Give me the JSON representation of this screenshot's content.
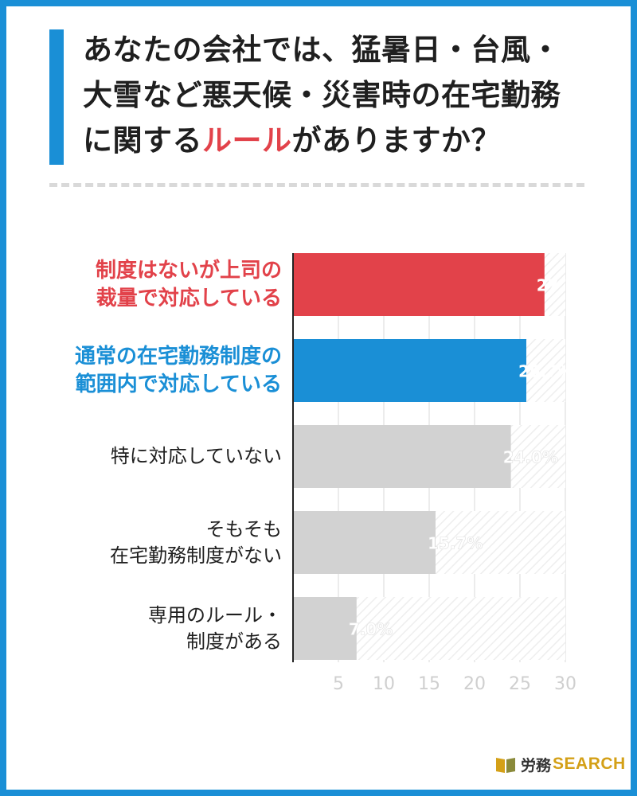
{
  "title": {
    "line1": "あなたの会社では、猛暑日・台風・",
    "line2": "大雪など悪天候・災害時の在宅勤務",
    "line3_prefix": "に関する",
    "line3_highlight": "ルール",
    "line3_suffix": "がありますか？"
  },
  "colors": {
    "frame": "#1a8fd6",
    "accent_red": "#e2424a",
    "accent_blue": "#1a8fd6",
    "bar_gray": "#d2d2d2"
  },
  "chart_data": {
    "type": "bar",
    "orientation": "horizontal",
    "categories": [
      [
        "制度はないが上司の",
        "裁量で対応している"
      ],
      [
        "通常の在宅勤務制度の",
        "範囲内で対応している"
      ],
      [
        "特に対応していない"
      ],
      [
        "そもそも",
        "在宅勤務制度がない"
      ],
      [
        "専用のルール・",
        "制度がある"
      ]
    ],
    "values": [
      27.7,
      25.7,
      24.0,
      15.7,
      7.0
    ],
    "value_labels": [
      "27.7%",
      "25.7%",
      "24.0%",
      "15.7%",
      "7.0%"
    ],
    "bar_colors": [
      "#e2424a",
      "#1a8fd6",
      "#d2d2d2",
      "#d2d2d2",
      "#d2d2d2"
    ],
    "label_styles": [
      "hl-red",
      "hl-blue",
      "",
      "",
      ""
    ],
    "xlim": [
      0,
      30
    ],
    "xticks": [
      5,
      10,
      15,
      20,
      25,
      30
    ],
    "grid": true
  },
  "logo": {
    "text_jp": "労務",
    "text_en": "SEARCH"
  }
}
